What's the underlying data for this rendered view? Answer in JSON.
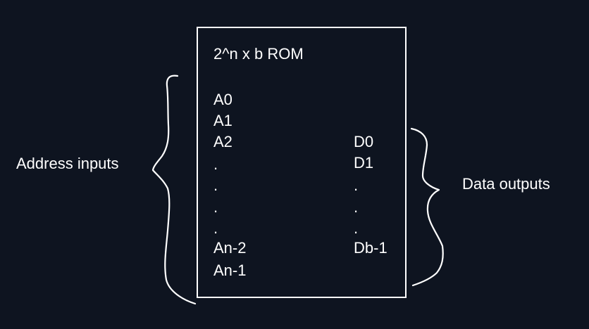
{
  "rom": {
    "title": "2^n x b ROM",
    "address_lines": [
      "A0",
      "A1",
      "A2",
      ".",
      ".",
      ".",
      ".",
      "An-2",
      "An-1"
    ],
    "data_lines": [
      "D0",
      "D1",
      ".",
      ".",
      ".",
      "Db-1"
    ]
  },
  "labels": {
    "address_inputs": "Address inputs",
    "data_outputs": "Data outputs"
  },
  "colors": {
    "background": "#0e1420",
    "foreground": "#ffffff"
  }
}
